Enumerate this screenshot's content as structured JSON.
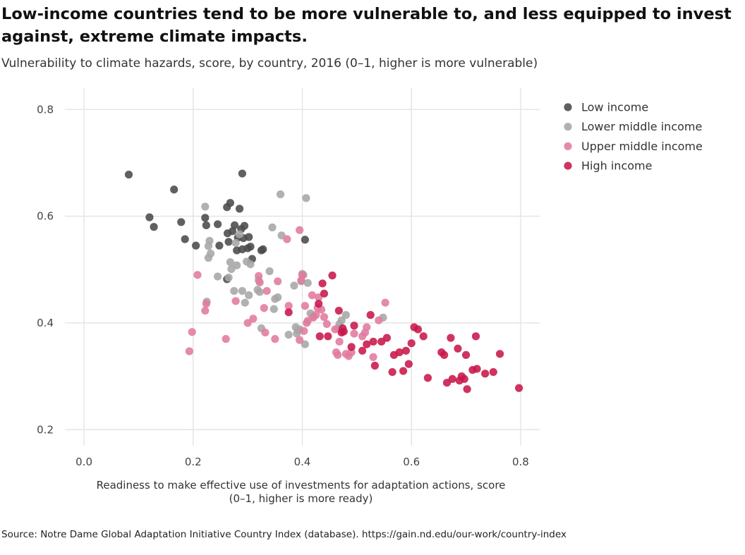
{
  "title": "Low-income countries tend to be more vulnerable to, and less equipped to invest against, extreme climate impacts.",
  "subtitle": "Vulnerability to climate hazards, score, by country, 2016 (0–1, higher is more vulnerable)",
  "caption": "Source: Notre Dame Global Adaptation Initiative Country Index (database). https://gain.nd.edu/our-work/country-index",
  "chart_data": {
    "type": "scatter",
    "xlabel_lines": [
      "Readiness to make effective use of investments for adaptation actions, score",
      "(0–1, higher is more ready)"
    ],
    "ylabel": "",
    "xlim": [
      -0.035,
      0.835
    ],
    "ylim": [
      0.17,
      0.84
    ],
    "x_ticks": [
      0.0,
      0.2,
      0.4,
      0.6,
      0.8
    ],
    "x_tick_labels": [
      "0.0",
      "0.2",
      "0.4",
      "0.6",
      "0.8"
    ],
    "y_ticks": [
      0.2,
      0.4,
      0.6,
      0.8
    ],
    "y_tick_labels": [
      "0.2",
      "0.4",
      "0.6",
      "0.8"
    ],
    "grid": true,
    "legend_position": "top-right",
    "series": [
      {
        "name": "Low income",
        "color": "#4a4a4a",
        "points": [
          [
            0.082,
            0.678
          ],
          [
            0.165,
            0.65
          ],
          [
            0.29,
            0.68
          ],
          [
            0.12,
            0.598
          ],
          [
            0.128,
            0.58
          ],
          [
            0.178,
            0.589
          ],
          [
            0.185,
            0.557
          ],
          [
            0.205,
            0.545
          ],
          [
            0.222,
            0.597
          ],
          [
            0.224,
            0.583
          ],
          [
            0.245,
            0.585
          ],
          [
            0.248,
            0.545
          ],
          [
            0.262,
            0.617
          ],
          [
            0.263,
            0.568
          ],
          [
            0.265,
            0.552
          ],
          [
            0.268,
            0.625
          ],
          [
            0.272,
            0.572
          ],
          [
            0.276,
            0.583
          ],
          [
            0.28,
            0.536
          ],
          [
            0.282,
            0.56
          ],
          [
            0.285,
            0.614
          ],
          [
            0.288,
            0.576
          ],
          [
            0.29,
            0.538
          ],
          [
            0.292,
            0.559
          ],
          [
            0.294,
            0.582
          ],
          [
            0.3,
            0.54
          ],
          [
            0.302,
            0.561
          ],
          [
            0.305,
            0.543
          ],
          [
            0.308,
            0.52
          ],
          [
            0.325,
            0.536
          ],
          [
            0.328,
            0.538
          ],
          [
            0.262,
            0.482
          ],
          [
            0.405,
            0.556
          ]
        ]
      },
      {
        "name": "Lower middle income",
        "color": "#a6a6a6",
        "points": [
          [
            0.222,
            0.618
          ],
          [
            0.225,
            0.44
          ],
          [
            0.228,
            0.522
          ],
          [
            0.23,
            0.554
          ],
          [
            0.232,
            0.53
          ],
          [
            0.228,
            0.544
          ],
          [
            0.245,
            0.487
          ],
          [
            0.265,
            0.485
          ],
          [
            0.268,
            0.514
          ],
          [
            0.27,
            0.501
          ],
          [
            0.275,
            0.46
          ],
          [
            0.278,
            0.55
          ],
          [
            0.28,
            0.508
          ],
          [
            0.285,
            0.566
          ],
          [
            0.29,
            0.46
          ],
          [
            0.295,
            0.438
          ],
          [
            0.298,
            0.515
          ],
          [
            0.302,
            0.452
          ],
          [
            0.305,
            0.51
          ],
          [
            0.318,
            0.462
          ],
          [
            0.32,
            0.48
          ],
          [
            0.322,
            0.458
          ],
          [
            0.325,
            0.39
          ],
          [
            0.34,
            0.497
          ],
          [
            0.345,
            0.579
          ],
          [
            0.348,
            0.426
          ],
          [
            0.35,
            0.445
          ],
          [
            0.355,
            0.448
          ],
          [
            0.36,
            0.641
          ],
          [
            0.362,
            0.564
          ],
          [
            0.375,
            0.378
          ],
          [
            0.385,
            0.47
          ],
          [
            0.388,
            0.392
          ],
          [
            0.39,
            0.38
          ],
          [
            0.392,
            0.386
          ],
          [
            0.395,
            0.388
          ],
          [
            0.398,
            0.478
          ],
          [
            0.4,
            0.492
          ],
          [
            0.402,
            0.49
          ],
          [
            0.405,
            0.36
          ],
          [
            0.407,
            0.634
          ],
          [
            0.41,
            0.475
          ],
          [
            0.415,
            0.418
          ],
          [
            0.42,
            0.413
          ],
          [
            0.465,
            0.39
          ],
          [
            0.468,
            0.398
          ],
          [
            0.472,
            0.405
          ],
          [
            0.48,
            0.415
          ],
          [
            0.548,
            0.41
          ]
        ]
      },
      {
        "name": "Upper middle income",
        "color": "#e07a9e",
        "points": [
          [
            0.208,
            0.49
          ],
          [
            0.198,
            0.383
          ],
          [
            0.193,
            0.347
          ],
          [
            0.222,
            0.423
          ],
          [
            0.224,
            0.436
          ],
          [
            0.26,
            0.37
          ],
          [
            0.278,
            0.441
          ],
          [
            0.3,
            0.4
          ],
          [
            0.31,
            0.408
          ],
          [
            0.32,
            0.488
          ],
          [
            0.322,
            0.476
          ],
          [
            0.33,
            0.428
          ],
          [
            0.332,
            0.382
          ],
          [
            0.335,
            0.46
          ],
          [
            0.35,
            0.37
          ],
          [
            0.355,
            0.478
          ],
          [
            0.372,
            0.557
          ],
          [
            0.375,
            0.432
          ],
          [
            0.395,
            0.574
          ],
          [
            0.398,
            0.48
          ],
          [
            0.4,
            0.49
          ],
          [
            0.403,
            0.385
          ],
          [
            0.405,
            0.432
          ],
          [
            0.408,
            0.4
          ],
          [
            0.41,
            0.404
          ],
          [
            0.418,
            0.452
          ],
          [
            0.42,
            0.41
          ],
          [
            0.425,
            0.415
          ],
          [
            0.428,
            0.428
          ],
          [
            0.43,
            0.448
          ],
          [
            0.435,
            0.425
          ],
          [
            0.44,
            0.411
          ],
          [
            0.445,
            0.398
          ],
          [
            0.46,
            0.388
          ],
          [
            0.462,
            0.345
          ],
          [
            0.465,
            0.34
          ],
          [
            0.468,
            0.365
          ],
          [
            0.48,
            0.342
          ],
          [
            0.485,
            0.338
          ],
          [
            0.49,
            0.345
          ],
          [
            0.495,
            0.38
          ],
          [
            0.51,
            0.375
          ],
          [
            0.515,
            0.382
          ],
          [
            0.518,
            0.392
          ],
          [
            0.53,
            0.336
          ],
          [
            0.54,
            0.405
          ],
          [
            0.552,
            0.438
          ],
          [
            0.395,
            0.368
          ]
        ]
      },
      {
        "name": "High income",
        "color": "#c8174a",
        "points": [
          [
            0.375,
            0.42
          ],
          [
            0.43,
            0.436
          ],
          [
            0.432,
            0.375
          ],
          [
            0.437,
            0.474
          ],
          [
            0.44,
            0.455
          ],
          [
            0.447,
            0.375
          ],
          [
            0.455,
            0.489
          ],
          [
            0.467,
            0.423
          ],
          [
            0.472,
            0.382
          ],
          [
            0.474,
            0.39
          ],
          [
            0.476,
            0.384
          ],
          [
            0.49,
            0.355
          ],
          [
            0.495,
            0.395
          ],
          [
            0.51,
            0.348
          ],
          [
            0.518,
            0.36
          ],
          [
            0.525,
            0.415
          ],
          [
            0.53,
            0.365
          ],
          [
            0.533,
            0.32
          ],
          [
            0.545,
            0.365
          ],
          [
            0.555,
            0.372
          ],
          [
            0.565,
            0.308
          ],
          [
            0.568,
            0.34
          ],
          [
            0.578,
            0.345
          ],
          [
            0.585,
            0.31
          ],
          [
            0.59,
            0.348
          ],
          [
            0.595,
            0.323
          ],
          [
            0.6,
            0.362
          ],
          [
            0.605,
            0.392
          ],
          [
            0.612,
            0.388
          ],
          [
            0.622,
            0.375
          ],
          [
            0.63,
            0.297
          ],
          [
            0.655,
            0.345
          ],
          [
            0.66,
            0.34
          ],
          [
            0.665,
            0.288
          ],
          [
            0.672,
            0.372
          ],
          [
            0.675,
            0.295
          ],
          [
            0.685,
            0.352
          ],
          [
            0.688,
            0.292
          ],
          [
            0.692,
            0.3
          ],
          [
            0.697,
            0.295
          ],
          [
            0.7,
            0.34
          ],
          [
            0.702,
            0.276
          ],
          [
            0.712,
            0.312
          ],
          [
            0.718,
            0.375
          ],
          [
            0.72,
            0.314
          ],
          [
            0.735,
            0.305
          ],
          [
            0.75,
            0.308
          ],
          [
            0.762,
            0.342
          ],
          [
            0.797,
            0.278
          ]
        ]
      }
    ]
  }
}
